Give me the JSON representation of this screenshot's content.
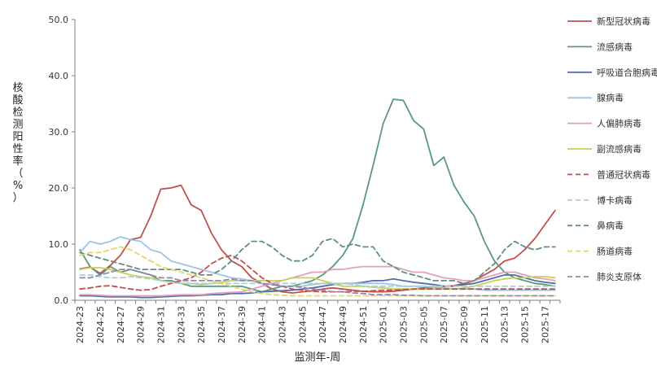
{
  "chart_data": {
    "type": "line",
    "title": "",
    "xlabel": "监测年-周",
    "ylabel": "核酸检测阳性率（%）",
    "ylim": [
      0,
      50
    ],
    "yticks": [
      "0.0",
      "10.0",
      "20.0",
      "30.0",
      "40.0",
      "50.0"
    ],
    "grid": false,
    "legend": "right",
    "x": [
      "2024-23",
      "2024-24",
      "2024-25",
      "2024-26",
      "2024-27",
      "2024-28",
      "2024-29",
      "2024-30",
      "2024-31",
      "2024-32",
      "2024-33",
      "2024-34",
      "2024-35",
      "2024-36",
      "2024-37",
      "2024-38",
      "2024-39",
      "2024-40",
      "2024-41",
      "2024-42",
      "2024-43",
      "2024-44",
      "2024-45",
      "2024-46",
      "2024-47",
      "2024-48",
      "2024-49",
      "2024-50",
      "2024-51",
      "2024-52",
      "2025-01",
      "2025-02",
      "2025-03",
      "2025-04",
      "2025-05",
      "2025-06",
      "2025-07",
      "2025-08",
      "2025-09",
      "2025-10",
      "2025-11",
      "2025-12",
      "2025-13",
      "2025-14",
      "2025-15",
      "2025-16",
      "2025-17",
      "2025-18"
    ],
    "xtick_labels": [
      "2024-23",
      "2024-25",
      "2024-27",
      "2024-29",
      "2024-31",
      "2024-33",
      "2024-35",
      "2024-37",
      "2024-39",
      "2024-41",
      "2024-43",
      "2024-45",
      "2024-47",
      "2024-49",
      "2024-51",
      "2025-01",
      "2025-03",
      "2025-05",
      "2025-07",
      "2025-09",
      "2025-11",
      "2025-13",
      "2025-15",
      "2025-17"
    ],
    "series": [
      {
        "name": "新型冠状病毒",
        "color": "#c0504d",
        "dash": "solid",
        "values": [
          5.6,
          5.9,
          4.8,
          6.2,
          8.0,
          10.8,
          11.2,
          15.0,
          19.8,
          20.0,
          20.5,
          17.0,
          16.0,
          12.0,
          9.0,
          7.0,
          6.0,
          4.0,
          3.0,
          2.0,
          1.5,
          1.3,
          1.5,
          1.7,
          2.0,
          2.2,
          2.0,
          1.8,
          1.6,
          1.5,
          1.5,
          1.6,
          1.8,
          2.0,
          2.2,
          2.3,
          2.5,
          2.6,
          3.0,
          3.5,
          4.5,
          5.5,
          7.0,
          7.5,
          9.0,
          11.0,
          13.5,
          16.0
        ]
      },
      {
        "name": "流感病毒",
        "color": "#5b9a78",
        "dash": "solid",
        "values": [
          9.0,
          6.0,
          4.5,
          6.0,
          5.0,
          5.5,
          5.0,
          4.5,
          3.5,
          3.5,
          3.0,
          2.5,
          2.5,
          2.5,
          2.5,
          2.5,
          2.5,
          2.0,
          1.5,
          2.0,
          2.5,
          2.5,
          3.0,
          3.5,
          4.5,
          6.0,
          8.0,
          11.0,
          17.0,
          24.0,
          31.5,
          35.8,
          35.6,
          32.0,
          30.5,
          24.0,
          25.5,
          20.5,
          17.5,
          15.0,
          10.5,
          7.0,
          5.0,
          4.0,
          3.5,
          3.0,
          2.8,
          2.5
        ]
      },
      {
        "name": "呼吸道合胞病毒",
        "color": "#4f6fa8",
        "dash": "solid",
        "values": [
          0.8,
          0.8,
          0.7,
          0.6,
          0.6,
          0.6,
          0.5,
          0.5,
          0.6,
          0.7,
          0.8,
          0.8,
          0.9,
          1.0,
          1.0,
          1.2,
          1.2,
          1.3,
          1.5,
          1.6,
          1.7,
          1.8,
          2.0,
          2.2,
          2.5,
          2.8,
          3.0,
          3.0,
          3.2,
          3.5,
          3.5,
          3.8,
          3.5,
          3.2,
          3.0,
          2.8,
          2.5,
          2.5,
          2.8,
          3.0,
          3.5,
          4.0,
          4.5,
          4.5,
          4.0,
          3.5,
          3.2,
          3.0
        ]
      },
      {
        "name": "腺病毒",
        "color": "#9dc3e6",
        "dash": "solid",
        "values": [
          8.5,
          10.5,
          10.0,
          10.5,
          11.3,
          10.8,
          10.5,
          9.0,
          8.5,
          7.0,
          6.5,
          6.0,
          5.5,
          5.0,
          4.5,
          4.0,
          3.8,
          3.5,
          3.0,
          2.8,
          2.5,
          2.5,
          2.5,
          2.8,
          3.0,
          3.0,
          3.0,
          3.0,
          3.0,
          3.0,
          3.0,
          2.8,
          2.5,
          2.5,
          2.5,
          2.3,
          2.2,
          2.0,
          2.0,
          2.0,
          1.8,
          1.8,
          1.8,
          1.8,
          1.8,
          1.8,
          1.8,
          1.8
        ]
      },
      {
        "name": "人偏肺病毒",
        "color": "#e49fc0",
        "dash": "solid",
        "values": [
          1.0,
          1.0,
          0.9,
          0.8,
          0.8,
          0.8,
          0.8,
          0.8,
          0.8,
          0.9,
          1.0,
          1.0,
          1.0,
          1.2,
          1.3,
          1.4,
          1.5,
          2.0,
          2.5,
          3.0,
          3.5,
          4.0,
          4.5,
          5.0,
          5.0,
          5.5,
          5.5,
          5.8,
          6.0,
          6.0,
          6.0,
          6.0,
          5.5,
          5.0,
          5.0,
          4.5,
          4.0,
          3.8,
          3.5,
          3.5,
          4.0,
          4.5,
          5.0,
          5.0,
          4.5,
          4.0,
          3.8,
          3.5
        ]
      },
      {
        "name": "副流感病毒",
        "color": "#c5cf5a",
        "dash": "solid",
        "values": [
          5.5,
          5.8,
          5.8,
          5.5,
          5.0,
          4.5,
          4.2,
          4.0,
          3.5,
          3.2,
          3.0,
          3.0,
          2.8,
          3.0,
          3.2,
          3.5,
          3.5,
          3.5,
          3.5,
          3.5,
          3.5,
          4.0,
          4.0,
          4.0,
          3.5,
          3.0,
          2.5,
          2.5,
          2.5,
          2.3,
          2.2,
          2.0,
          2.0,
          2.0,
          2.0,
          2.0,
          2.0,
          2.0,
          2.2,
          2.5,
          3.0,
          3.5,
          3.8,
          4.0,
          4.0,
          4.2,
          4.2,
          4.0
        ]
      },
      {
        "name": "普通冠状病毒",
        "color": "#c0504d",
        "dash": "dash",
        "values": [
          2.0,
          2.2,
          2.5,
          2.6,
          2.3,
          2.0,
          1.8,
          1.9,
          2.5,
          3.0,
          3.5,
          4.0,
          5.0,
          6.5,
          7.5,
          8.0,
          7.0,
          5.5,
          4.0,
          3.0,
          2.5,
          2.0,
          1.8,
          1.6,
          1.5,
          1.5,
          1.5,
          1.6,
          1.6,
          1.7,
          1.8,
          1.8,
          1.9,
          2.0,
          2.0,
          2.0,
          2.0,
          2.0,
          2.0,
          2.0,
          2.0,
          2.0,
          2.0,
          2.0,
          2.0,
          2.0,
          2.0,
          2.0
        ]
      },
      {
        "name": "博卡病毒",
        "color": "#a9d3d0",
        "dash": "dash",
        "values": [
          4.5,
          4.5,
          4.2,
          4.0,
          4.0,
          4.2,
          4.0,
          3.8,
          3.5,
          3.2,
          3.0,
          3.0,
          3.0,
          3.0,
          3.0,
          3.0,
          3.0,
          3.0,
          3.0,
          3.0,
          3.0,
          3.0,
          3.0,
          3.0,
          3.0,
          3.0,
          3.0,
          2.8,
          2.5,
          2.5,
          2.5,
          2.5,
          2.5,
          2.5,
          2.5,
          2.5,
          2.5,
          2.5,
          2.5,
          2.5,
          2.5,
          2.5,
          2.5,
          2.5,
          2.5,
          2.5,
          2.5,
          2.5
        ]
      },
      {
        "name": "鼻病毒",
        "color": "#5f8f7f",
        "dash": "dash",
        "values": [
          8.5,
          8.0,
          7.5,
          7.0,
          6.5,
          6.0,
          5.5,
          5.5,
          5.5,
          5.5,
          5.5,
          5.0,
          4.5,
          4.5,
          5.5,
          7.0,
          9.0,
          10.5,
          10.5,
          9.5,
          8.0,
          7.0,
          7.0,
          8.0,
          10.5,
          11.0,
          9.5,
          10.0,
          9.5,
          9.5,
          7.0,
          6.0,
          5.0,
          4.5,
          4.0,
          3.5,
          3.5,
          3.5,
          3.0,
          3.5,
          5.0,
          6.5,
          9.0,
          10.5,
          9.5,
          9.0,
          9.5,
          9.5
        ]
      },
      {
        "name": "肠道病毒",
        "color": "#e3d66c",
        "dash": "dash",
        "values": [
          8.0,
          8.5,
          8.5,
          9.0,
          9.5,
          9.0,
          8.0,
          7.0,
          6.0,
          5.5,
          5.0,
          4.5,
          4.0,
          3.5,
          3.0,
          2.5,
          2.0,
          1.5,
          1.2,
          1.0,
          0.9,
          0.8,
          0.8,
          0.8,
          0.8,
          0.8,
          0.8,
          0.8,
          0.8,
          0.8,
          0.8,
          0.8,
          0.8,
          0.8,
          0.8,
          0.8,
          0.8,
          0.8,
          0.8,
          0.8,
          0.8,
          0.8,
          0.8,
          0.8,
          0.8,
          0.8,
          0.8,
          0.8
        ]
      },
      {
        "name": "肺炎支原体",
        "color": "#9585b5",
        "dash": "dash",
        "values": [
          4.0,
          4.0,
          4.5,
          5.0,
          5.5,
          5.5,
          5.0,
          4.5,
          4.0,
          4.0,
          3.5,
          3.5,
          3.5,
          3.5,
          3.5,
          3.8,
          3.5,
          3.5,
          3.0,
          2.8,
          2.5,
          2.5,
          2.3,
          2.0,
          1.8,
          1.5,
          1.5,
          1.3,
          1.2,
          1.0,
          1.0,
          1.0,
          0.9,
          0.9,
          0.8,
          0.8,
          0.8,
          0.8,
          0.8,
          0.8,
          0.8,
          0.8,
          0.8,
          0.8,
          0.8,
          0.8,
          0.8,
          0.8
        ]
      }
    ]
  }
}
